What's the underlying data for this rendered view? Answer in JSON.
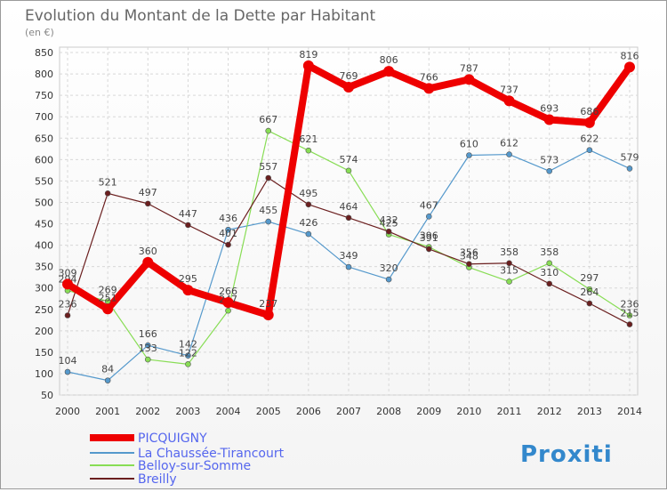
{
  "chart_data": {
    "type": "line",
    "title": "Evolution du Montant de la Dette par Habitant",
    "subtitle": "(en €)",
    "x": [
      "2000",
      "2001",
      "2002",
      "2003",
      "2004",
      "2005",
      "2006",
      "2007",
      "2008",
      "2009",
      "2010",
      "2011",
      "2012",
      "2013",
      "2014"
    ],
    "ylim": [
      50,
      850
    ],
    "yticks": [
      50,
      100,
      150,
      200,
      250,
      300,
      350,
      400,
      450,
      500,
      550,
      600,
      650,
      700,
      750,
      800,
      850
    ],
    "grid": true,
    "legend_position": "bottom-left",
    "series": [
      {
        "name": "PICQUIGNY",
        "color": "#ee0000",
        "values": [
          309,
          251,
          360,
          295,
          266,
          237,
          819,
          769,
          806,
          766,
          787,
          737,
          693,
          686,
          816
        ]
      },
      {
        "name": "La Chaussée-Tirancourt",
        "color": "#5599cc",
        "values": [
          104,
          84,
          166,
          142,
          436,
          455,
          426,
          349,
          320,
          467,
          610,
          612,
          573,
          622,
          579
        ]
      },
      {
        "name": "Belloy-sur-Somme",
        "color": "#88dd55",
        "values": [
          294,
          269,
          133,
          122,
          247,
          667,
          621,
          574,
          425,
          396,
          348,
          315,
          358,
          297,
          236
        ]
      },
      {
        "name": "Breilly",
        "color": "#6b1f1f",
        "values": [
          236,
          521,
          497,
          447,
          401,
          557,
          495,
          464,
          432,
          391,
          356,
          358,
          310,
          264,
          215
        ]
      }
    ]
  },
  "logo": {
    "text": "Proxiti"
  }
}
